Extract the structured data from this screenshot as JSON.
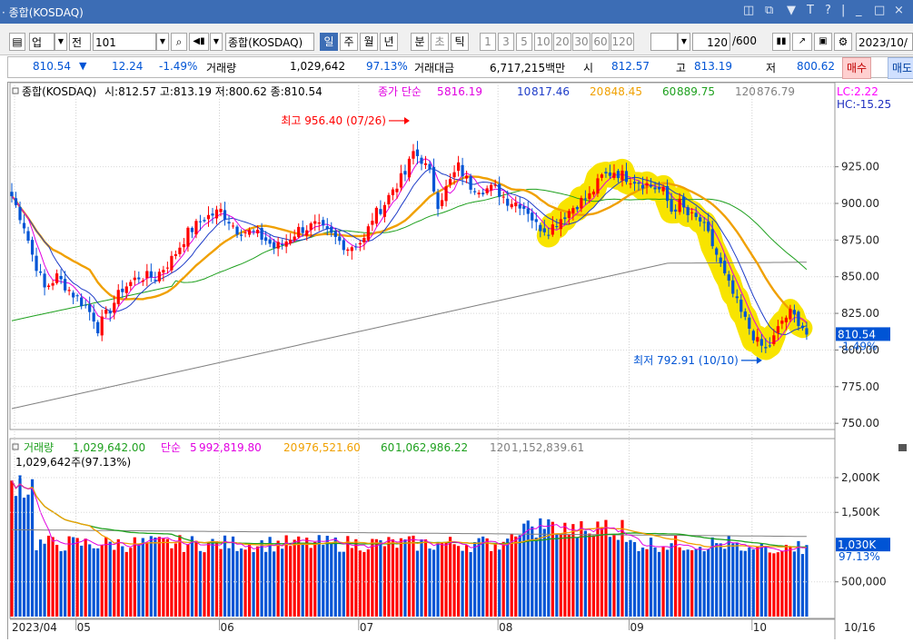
{
  "window": {
    "title": "· 종합(KOSDAQ)"
  },
  "toolbar": {
    "code": "업",
    "prev": "전",
    "index_code": "101",
    "index_name": "종합(KOSDAQ)",
    "periods": [
      "일",
      "주",
      "월",
      "년",
      "분",
      "초",
      "틱"
    ],
    "active_period": "일",
    "intervals": [
      "1",
      "3",
      "5",
      "10",
      "20",
      "30",
      "60",
      "120"
    ],
    "count_value": "120",
    "count_max": "/600",
    "date": "2023/10/"
  },
  "quote": {
    "price": "810.54",
    "change_arrow": "▼",
    "change": "12.24",
    "change_pct": "-1.49%",
    "volume_label": "거래량",
    "volume": "1,029,642",
    "volume_ratio": "97.13%",
    "amount_label": "거래대금",
    "amount": "6,717,215백만",
    "open_label": "시",
    "open": "812.57",
    "high_label": "고",
    "high": "813.19",
    "low_label": "저",
    "low": "800.62",
    "buy_label": "매수",
    "sell_label": "매도"
  },
  "colors": {
    "up": "#ff0000",
    "down": "#0054d5",
    "ma5": "#e100e1",
    "ma10": "#1e3cc8",
    "ma20": "#f0a000",
    "ma60": "#1ea01e",
    "ma120": "#808080",
    "highlight": "#f8e400",
    "titlebar": "#3c6db5"
  },
  "chart_data": [
    {
      "type": "candlestick",
      "legend": {
        "name": "종합(KOSDAQ)",
        "ohlc": "시:812.57 고:813.19 저:800.62 종:810.54",
        "ma_label": "종가 단순",
        "ma": [
          {
            "period": 5,
            "value": "816.19"
          },
          {
            "period": 10,
            "value": "817.46"
          },
          {
            "period": 20,
            "value": "848.45"
          },
          {
            "period": 60,
            "value": "889.75"
          },
          {
            "period": 120,
            "value": "876.79"
          }
        ]
      },
      "lc": "LC:2.22",
      "hc": "HC:-15.25",
      "y_ticks": [
        "925.00",
        "900.00",
        "875.00",
        "850.00",
        "825.00",
        "800.00",
        "775.00",
        "750.00"
      ],
      "ylim": [
        747,
        970
      ],
      "last_price": "810.54",
      "last_change": "-1.49%",
      "max_annotation": {
        "label": "최고 956.40 (07/26)",
        "value": 956.4,
        "date": "07/26"
      },
      "min_annotation": {
        "label": "최저 792.91 (10/10)",
        "value": 792.91,
        "date": "10/10"
      },
      "anchors": [
        [
          0,
          905
        ],
        [
          3,
          885
        ],
        [
          5,
          865
        ],
        [
          8,
          842
        ],
        [
          11,
          850
        ],
        [
          15,
          838
        ],
        [
          18,
          830
        ],
        [
          20,
          822
        ],
        [
          21,
          815
        ],
        [
          24,
          828
        ],
        [
          27,
          842
        ],
        [
          31,
          850
        ],
        [
          35,
          850
        ],
        [
          39,
          862
        ],
        [
          43,
          880
        ],
        [
          47,
          890
        ],
        [
          51,
          895
        ],
        [
          55,
          882
        ],
        [
          59,
          880
        ],
        [
          62,
          875
        ],
        [
          64,
          870
        ],
        [
          66,
          872
        ],
        [
          70,
          882
        ],
        [
          74,
          885
        ],
        [
          78,
          878
        ],
        [
          82,
          870
        ],
        [
          86,
          875
        ],
        [
          88,
          890
        ],
        [
          91,
          900
        ],
        [
          93,
          910
        ],
        [
          96,
          920
        ],
        [
          98,
          935
        ],
        [
          100,
          930
        ],
        [
          102,
          920
        ],
        [
          104,
          900
        ],
        [
          106,
          910
        ],
        [
          109,
          925
        ],
        [
          112,
          912
        ],
        [
          115,
          910
        ],
        [
          118,
          910
        ],
        [
          121,
          902
        ],
        [
          124,
          900
        ],
        [
          126,
          895
        ],
        [
          128,
          885
        ],
        [
          131,
          882
        ],
        [
          134,
          890
        ],
        [
          138,
          900
        ],
        [
          141,
          905
        ],
        [
          144,
          918
        ],
        [
          147,
          922
        ],
        [
          150,
          918
        ],
        [
          153,
          915
        ],
        [
          156,
          912
        ],
        [
          159,
          908
        ],
        [
          161,
          895
        ],
        [
          163,
          900
        ],
        [
          165,
          892
        ],
        [
          168,
          888
        ],
        [
          170,
          878
        ],
        [
          172,
          865
        ],
        [
          174,
          850
        ],
        [
          176,
          838
        ],
        [
          178,
          825
        ],
        [
          180,
          815
        ],
        [
          182,
          805
        ],
        [
          184,
          800
        ],
        [
          186,
          808
        ],
        [
          188,
          820
        ],
        [
          190,
          825
        ],
        [
          192,
          820
        ],
        [
          194,
          812
        ]
      ],
      "ma_x_start": [
        0,
        0,
        0,
        0,
        0
      ]
    },
    {
      "type": "bar",
      "legend": {
        "name": "거래량",
        "current": "1,029,642.00",
        "ma_label": "단순",
        "ma": [
          {
            "period": 5,
            "value": "992,819.80"
          },
          {
            "period": 20,
            "value": "976,521.60"
          },
          {
            "period": 60,
            "value": "1,062,986.22"
          },
          {
            "period": 120,
            "value": "1,152,839.61"
          }
        ]
      },
      "current_label": "1,029,642주(97.13%)",
      "y_ticks": [
        "2,000K",
        "1,500K",
        "500,000"
      ],
      "ylim": [
        0,
        2300000
      ],
      "last_value": "1,030K",
      "last_ratio": "97.13%",
      "x_labels": [
        "2023/04",
        "05",
        "06",
        "07",
        "08",
        "09",
        "10",
        "10/16"
      ]
    }
  ]
}
